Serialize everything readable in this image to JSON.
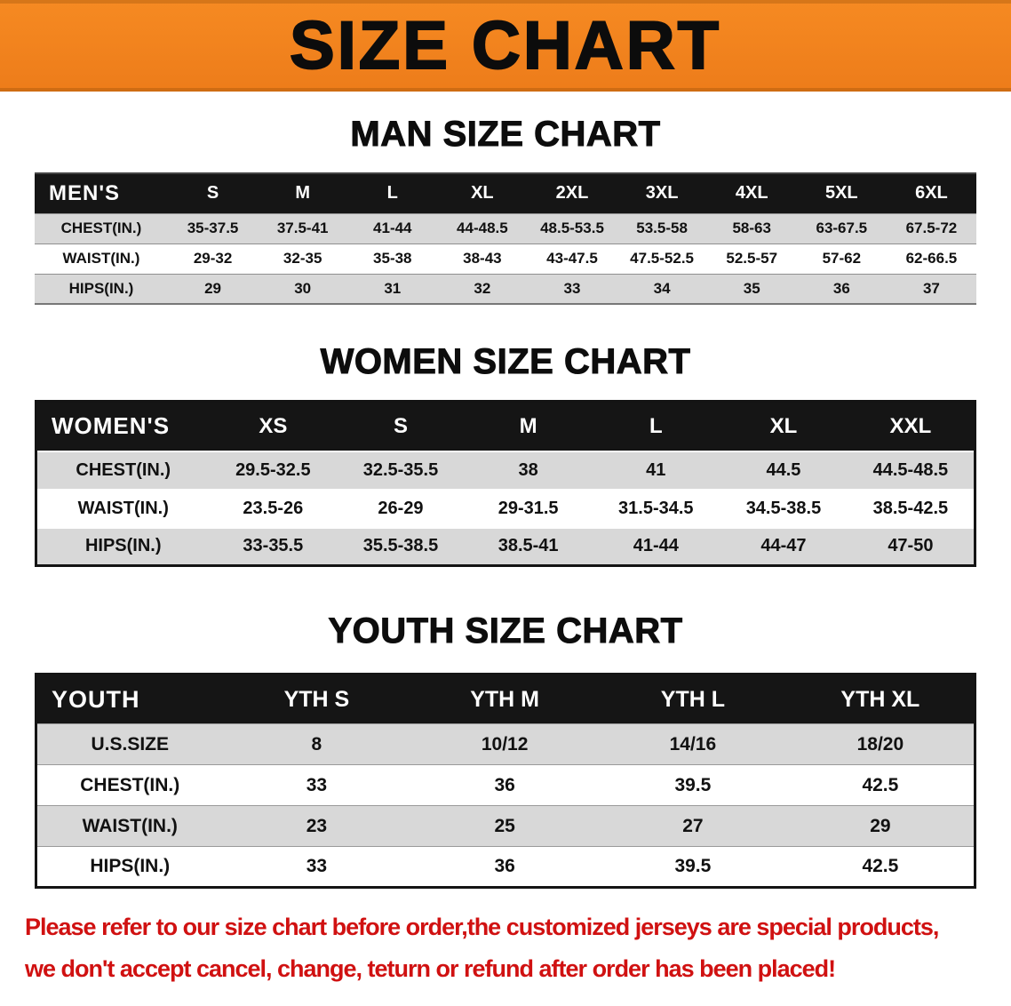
{
  "banner": {
    "title": "SIZE CHART"
  },
  "colors": {
    "banner_orange": "#ef7e1c",
    "table_header_black": "#151515",
    "row_gray": "#d8d8d8",
    "disclaimer_red": "#d01111"
  },
  "sections": {
    "men": {
      "heading": "MAN SIZE CHART",
      "header": [
        "MEN'S",
        "S",
        "M",
        "L",
        "XL",
        "2XL",
        "3XL",
        "4XL",
        "5XL",
        "6XL"
      ],
      "rows": [
        {
          "label": "CHEST(IN.)",
          "values": [
            "35-37.5",
            "37.5-41",
            "41-44",
            "44-48.5",
            "48.5-53.5",
            "53.5-58",
            "58-63",
            "63-67.5",
            "67.5-72"
          ]
        },
        {
          "label": "WAIST(IN.)",
          "values": [
            "29-32",
            "32-35",
            "35-38",
            "38-43",
            "43-47.5",
            "47.5-52.5",
            "52.5-57",
            "57-62",
            "62-66.5"
          ]
        },
        {
          "label": "HIPS(IN.)",
          "values": [
            "29",
            "30",
            "31",
            "32",
            "33",
            "34",
            "35",
            "36",
            "37"
          ]
        }
      ]
    },
    "women": {
      "heading": "WOMEN SIZE CHART",
      "header": [
        "WOMEN'S",
        "XS",
        "S",
        "M",
        "L",
        "XL",
        "XXL"
      ],
      "rows": [
        {
          "label": "CHEST(IN.)",
          "values": [
            "29.5-32.5",
            "32.5-35.5",
            "38",
            "41",
            "44.5",
            "44.5-48.5"
          ]
        },
        {
          "label": "WAIST(IN.)",
          "values": [
            "23.5-26",
            "26-29",
            "29-31.5",
            "31.5-34.5",
            "34.5-38.5",
            "38.5-42.5"
          ]
        },
        {
          "label": "HIPS(IN.)",
          "values": [
            "33-35.5",
            "35.5-38.5",
            "38.5-41",
            "41-44",
            "44-47",
            "47-50"
          ]
        }
      ]
    },
    "youth": {
      "heading": "YOUTH SIZE CHART",
      "header": [
        "YOUTH",
        "YTH S",
        "YTH M",
        "YTH L",
        "YTH XL"
      ],
      "rows": [
        {
          "label": "U.S.SIZE",
          "values": [
            "8",
            "10/12",
            "14/16",
            "18/20"
          ]
        },
        {
          "label": "CHEST(IN.)",
          "values": [
            "33",
            "36",
            "39.5",
            "42.5"
          ]
        },
        {
          "label": "WAIST(IN.)",
          "values": [
            "23",
            "25",
            "27",
            "29"
          ]
        },
        {
          "label": "HIPS(IN.)",
          "values": [
            "33",
            "36",
            "39.5",
            "42.5"
          ]
        }
      ]
    }
  },
  "disclaimer": {
    "line1": "Please refer to our size chart before order,the customized jerseys are special products,",
    "line2": "we don't accept cancel, change, teturn or refund after order has been placed!"
  }
}
